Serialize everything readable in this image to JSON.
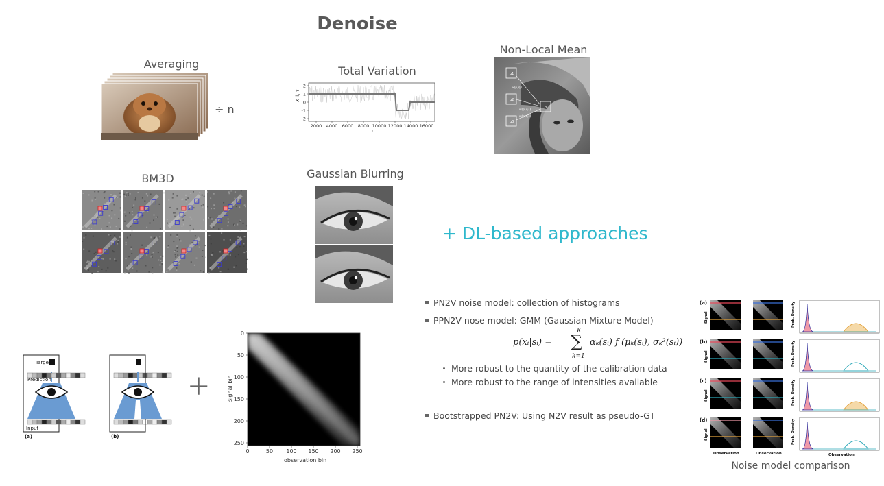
{
  "slide": {
    "title": "Denoise"
  },
  "methods": {
    "averaging": {
      "label": "Averaging",
      "divide": "÷ n"
    },
    "total_variation": {
      "label": "Total Variation",
      "ylabel": "X_i, Y_i",
      "xlabel": "n",
      "y_ticks": [
        "2",
        "1",
        "0",
        "-1",
        "-2"
      ],
      "x_ticks": [
        "2000",
        "4000",
        "6000",
        "8000",
        "10000",
        "12000",
        "14000",
        "16000"
      ]
    },
    "nlm": {
      "label": "Non-Local Mean",
      "w_labels": [
        "w(p,q1)",
        "w(p,q2)",
        "w(p,q3)"
      ],
      "p_label": "p",
      "q_labels": [
        "q1",
        "q2",
        "q3"
      ]
    },
    "bm3d": {
      "label": "BM3D"
    },
    "gaussian": {
      "label": "Gaussian Blurring"
    }
  },
  "dl_text": "+ DL-based approaches",
  "n2v_diagram": {
    "target_label": "Target",
    "prediction_label": "Prediction",
    "input_label": "Input",
    "panel_a": "(a)",
    "panel_b": "(b)",
    "plus": "+"
  },
  "hist_plot": {
    "ylabel": "signal bin",
    "xlabel": "observation bin",
    "y_ticks": [
      "0",
      "50",
      "100",
      "150",
      "200",
      "250"
    ],
    "x_ticks": [
      "0",
      "50",
      "100",
      "150",
      "200",
      "250"
    ]
  },
  "bullets": {
    "b1": "PN2V noise model: collection of histograms",
    "b2": "PPN2V nose model: GMM (Gaussian Mixture Model)",
    "sub1": "More robust to the quantity of the calibration data",
    "sub2": "More robust to the range of intensities available",
    "b3": "Bootstrapped PN2V: Using N2V result as pseudo-GT"
  },
  "formula": {
    "lhs": "p(xᵢ|sᵢ) =",
    "sum_top": "K",
    "sum_bottom": "k=1",
    "rhs": "αₖ(sᵢ) f (μₖ(sᵢ), σₖ²(sᵢ))"
  },
  "noise_comparison": {
    "caption": "Noise model comparison",
    "row_labels": [
      "(a)",
      "(b)",
      "(c)",
      "(d)"
    ],
    "signal_label": "Signal",
    "prob_label": "Prob. Density",
    "obs_label": "Observation",
    "colors": {
      "red": "#e8485a",
      "orange": "#e3a23c",
      "teal": "#2aa8b8",
      "pink": "#f09aa8"
    }
  },
  "colors": {
    "accent": "#2fb8cc",
    "title": "#595959",
    "cone": "#6a9bd2"
  }
}
